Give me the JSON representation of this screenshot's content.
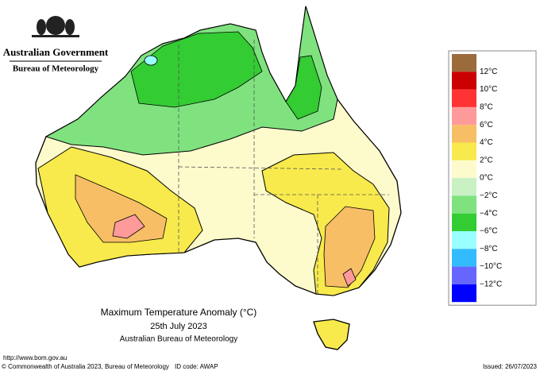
{
  "header": {
    "government": "Australian Government",
    "agency": "Bureau of Meteorology"
  },
  "legend": {
    "labels": [
      "12°C",
      "10°C",
      "8°C",
      "6°C",
      "4°C",
      "2°C",
      "0°C",
      "−2°C",
      "−4°C",
      "−6°C",
      "−8°C",
      "−10°C",
      "−12°C"
    ],
    "colors": [
      "#9c6b3c",
      "#cc0000",
      "#ff3333",
      "#ff9a9a",
      "#f7be66",
      "#f8ea4c",
      "#fdfbcc",
      "#c9f1c3",
      "#7fe27f",
      "#33cc33",
      "#9affff",
      "#33bbff",
      "#6666ff",
      "#0000ff"
    ]
  },
  "caption": {
    "title": "Maximum Temperature Anomaly (°C)",
    "date": "25th July 2023",
    "source": "Australian Bureau of Meteorology"
  },
  "footer": {
    "url": "http://www.bom.gov.au",
    "copyright": "© Commonwealth of Australia 2023, Bureau of Meteorology",
    "id_code": "ID code: AWAP",
    "issued": "Issued: 26/07/2023"
  }
}
